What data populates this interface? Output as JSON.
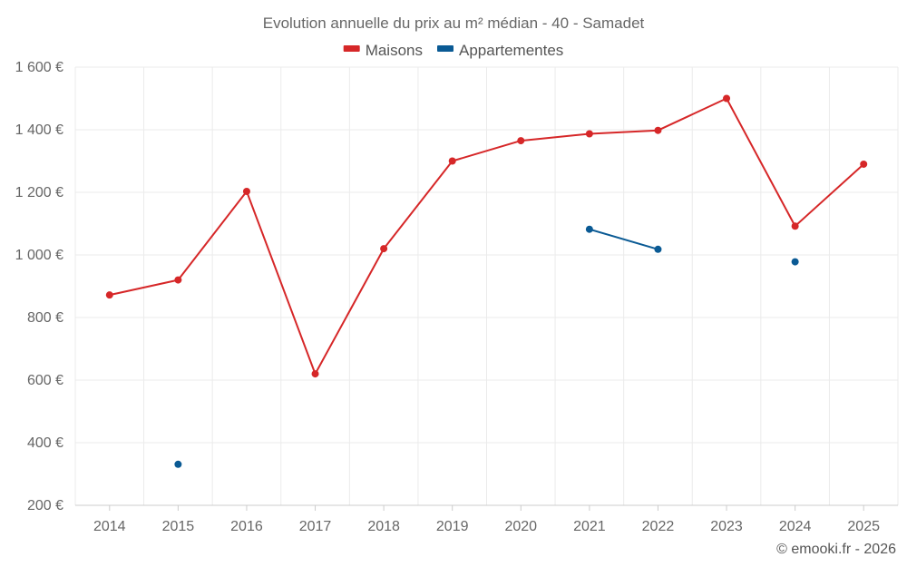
{
  "chart_data": {
    "type": "line",
    "title": "Evolution annuelle du prix au m² médian - 40 - Samadet",
    "categories": [
      "2014",
      "2015",
      "2016",
      "2017",
      "2018",
      "2019",
      "2020",
      "2021",
      "2022",
      "2023",
      "2024",
      "2025"
    ],
    "series": [
      {
        "name": "Maisons",
        "color": "#d62728",
        "values": [
          872,
          920,
          1203,
          620,
          1020,
          1300,
          1365,
          1387,
          1398,
          1500,
          1092,
          1290
        ]
      },
      {
        "name": "Appartementes",
        "color": "#0a5a94",
        "values": [
          null,
          331,
          null,
          null,
          null,
          null,
          null,
          1082,
          1018,
          null,
          978,
          null
        ]
      }
    ],
    "ylim": [
      200,
      1600
    ],
    "yticks": [
      200,
      400,
      600,
      800,
      1000,
      1200,
      1400,
      1600
    ],
    "ytick_labels": [
      "200 €",
      "400 €",
      "600 €",
      "800 €",
      "1 000 €",
      "1 200 €",
      "1 400 €",
      "1 600 €"
    ],
    "legend_position": "top-center",
    "grid": true
  },
  "credit": "© emooki.fr - 2026"
}
